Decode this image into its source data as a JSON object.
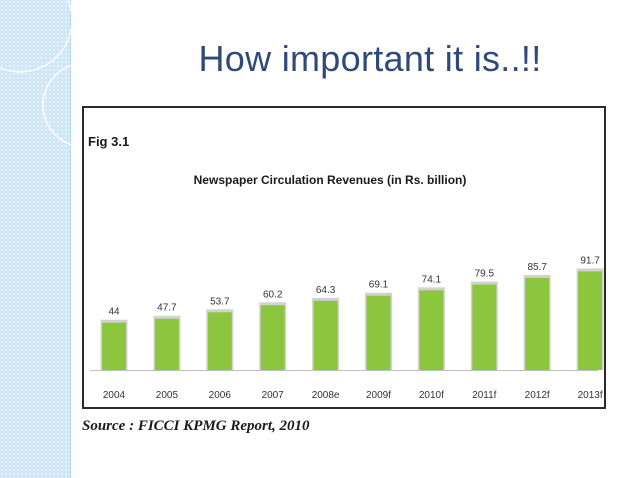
{
  "slide": {
    "title": "How important it is..!!",
    "fig_label": "Fig 3.1",
    "source": "Source : FICCI KPMG Report, 2010"
  },
  "colors": {
    "bar": "#8cc63f",
    "bar_shadow": "#d2d2d2",
    "title": "#2f4a7a",
    "sidebar": "#cfe6f4"
  },
  "chart_data": {
    "type": "bar",
    "title": "Newspaper Circulation Revenues (in Rs. billion)",
    "xlabel": "",
    "ylabel": "",
    "categories": [
      "2004",
      "2005",
      "2006",
      "2007",
      "2008e",
      "2009f",
      "2010f",
      "2011f",
      "2012f",
      "2013f"
    ],
    "values": [
      44,
      47.7,
      53.7,
      60.2,
      64.3,
      69.1,
      74.1,
      79.5,
      85.7,
      91.7
    ],
    "data_labels": [
      "44",
      "47.7",
      "53.7",
      "60.2",
      "64.3",
      "69.1",
      "74.1",
      "79.5",
      "85.7",
      "91.7"
    ],
    "ylim": [
      0,
      100
    ],
    "grid": false,
    "legend": "none"
  }
}
